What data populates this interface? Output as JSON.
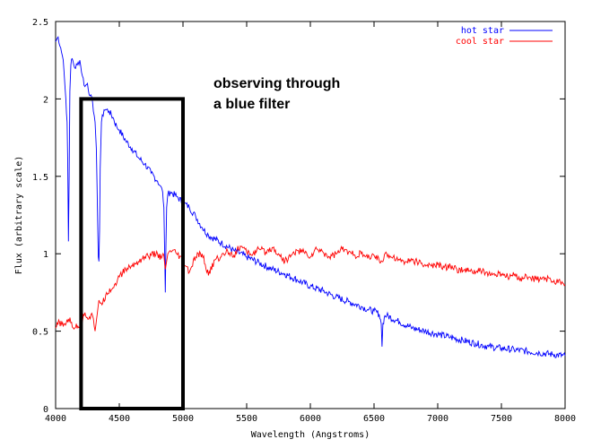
{
  "chart_data": {
    "type": "line",
    "title": "",
    "xlabel": "Wavelength (Angstroms)",
    "ylabel": "Flux (arbitrary scale)",
    "xlim": [
      4000,
      8000
    ],
    "ylim": [
      0,
      2.5
    ],
    "xticks": [
      4000,
      4500,
      5000,
      5500,
      6000,
      6500,
      7000,
      7500,
      8000
    ],
    "yticks": [
      0,
      0.5,
      1,
      1.5,
      2,
      2.5
    ],
    "ytick_labels": [
      "0",
      "0.5",
      "1",
      "1.5",
      "2",
      "2.5"
    ],
    "grid": false,
    "legend_position": "top-right",
    "series": [
      {
        "name": "hot star",
        "color": "#0000ff",
        "x": [
          4000,
          4020,
          4040,
          4060,
          4080,
          4090,
          4095,
          4101,
          4106,
          4112,
          4120,
          4130,
          4150,
          4170,
          4190,
          4210,
          4230,
          4250,
          4270,
          4290,
          4310,
          4320,
          4330,
          4335,
          4340,
          4345,
          4350,
          4360,
          4380,
          4400,
          4420,
          4450,
          4480,
          4500,
          4550,
          4600,
          4650,
          4700,
          4750,
          4800,
          4820,
          4840,
          4850,
          4856,
          4861,
          4866,
          4872,
          4880,
          4900,
          4950,
          5000,
          5050,
          5100,
          5150,
          5200,
          5300,
          5400,
          5500,
          5600,
          5700,
          5800,
          5900,
          6000,
          6100,
          6200,
          6300,
          6400,
          6450,
          6500,
          6540,
          6556,
          6563,
          6570,
          6585,
          6600,
          6700,
          6800,
          6900,
          7000,
          7100,
          7200,
          7300,
          7400,
          7500,
          7600,
          7700,
          7800,
          7900,
          8000
        ],
        "y": [
          2.37,
          2.4,
          2.33,
          2.25,
          2.0,
          1.85,
          1.6,
          1.08,
          1.5,
          2.05,
          2.22,
          2.26,
          2.2,
          2.22,
          2.25,
          2.15,
          2.08,
          2.1,
          2.02,
          1.98,
          1.85,
          1.68,
          1.2,
          0.98,
          0.95,
          1.15,
          1.55,
          1.85,
          1.93,
          1.93,
          1.92,
          1.88,
          1.82,
          1.8,
          1.73,
          1.68,
          1.62,
          1.58,
          1.52,
          1.47,
          1.44,
          1.4,
          1.3,
          1.0,
          0.75,
          1.05,
          1.3,
          1.38,
          1.4,
          1.37,
          1.33,
          1.3,
          1.24,
          1.17,
          1.12,
          1.07,
          1.02,
          0.98,
          0.94,
          0.9,
          0.87,
          0.83,
          0.79,
          0.76,
          0.72,
          0.69,
          0.66,
          0.64,
          0.63,
          0.61,
          0.55,
          0.4,
          0.55,
          0.6,
          0.6,
          0.56,
          0.52,
          0.5,
          0.48,
          0.46,
          0.44,
          0.42,
          0.4,
          0.39,
          0.38,
          0.37,
          0.36,
          0.35,
          0.34
        ]
      },
      {
        "name": "cool star",
        "color": "#ff0000",
        "x": [
          4000,
          4030,
          4060,
          4100,
          4150,
          4200,
          4230,
          4260,
          4290,
          4310,
          4340,
          4370,
          4400,
          4450,
          4500,
          4550,
          4600,
          4650,
          4700,
          4750,
          4800,
          4830,
          4850,
          4861,
          4875,
          4900,
          4950,
          5000,
          5050,
          5100,
          5150,
          5200,
          5250,
          5300,
          5350,
          5400,
          5450,
          5500,
          5550,
          5600,
          5650,
          5700,
          5750,
          5800,
          5850,
          5900,
          5950,
          6000,
          6050,
          6100,
          6150,
          6200,
          6250,
          6300,
          6350,
          6400,
          6450,
          6500,
          6563,
          6600,
          6650,
          6700,
          6750,
          6800,
          6850,
          6900,
          6950,
          7000,
          7050,
          7100,
          7150,
          7200,
          7250,
          7300,
          7350,
          7400,
          7450,
          7500,
          7550,
          7600,
          7650,
          7700,
          7750,
          7800,
          7850,
          7900,
          7950,
          8000
        ],
        "y": [
          0.52,
          0.56,
          0.53,
          0.58,
          0.52,
          0.55,
          0.62,
          0.58,
          0.6,
          0.5,
          0.7,
          0.68,
          0.75,
          0.78,
          0.85,
          0.9,
          0.92,
          0.95,
          0.98,
          0.99,
          1.0,
          0.97,
          0.99,
          0.9,
          0.97,
          1.02,
          1.0,
          0.95,
          0.88,
          0.98,
          1.0,
          0.86,
          0.96,
          0.98,
          1.02,
          0.99,
          1.05,
          1.01,
          1.0,
          1.03,
          1.01,
          1.04,
          1.0,
          0.95,
          0.99,
          1.02,
          1.01,
          0.98,
          1.03,
          1.01,
          0.98,
          1.0,
          1.03,
          1.01,
          0.99,
          1.0,
          0.97,
          0.99,
          0.95,
          1.0,
          0.98,
          0.96,
          0.95,
          0.96,
          0.94,
          0.93,
          0.92,
          0.93,
          0.91,
          0.92,
          0.9,
          0.89,
          0.89,
          0.88,
          0.89,
          0.87,
          0.86,
          0.87,
          0.85,
          0.86,
          0.84,
          0.85,
          0.84,
          0.83,
          0.84,
          0.82,
          0.83,
          0.8
        ]
      }
    ],
    "annotation": {
      "line1": "observing through",
      "line2": "a blue filter",
      "box_x_range": [
        4200,
        5000
      ],
      "box_y_range": [
        0,
        2
      ]
    }
  }
}
